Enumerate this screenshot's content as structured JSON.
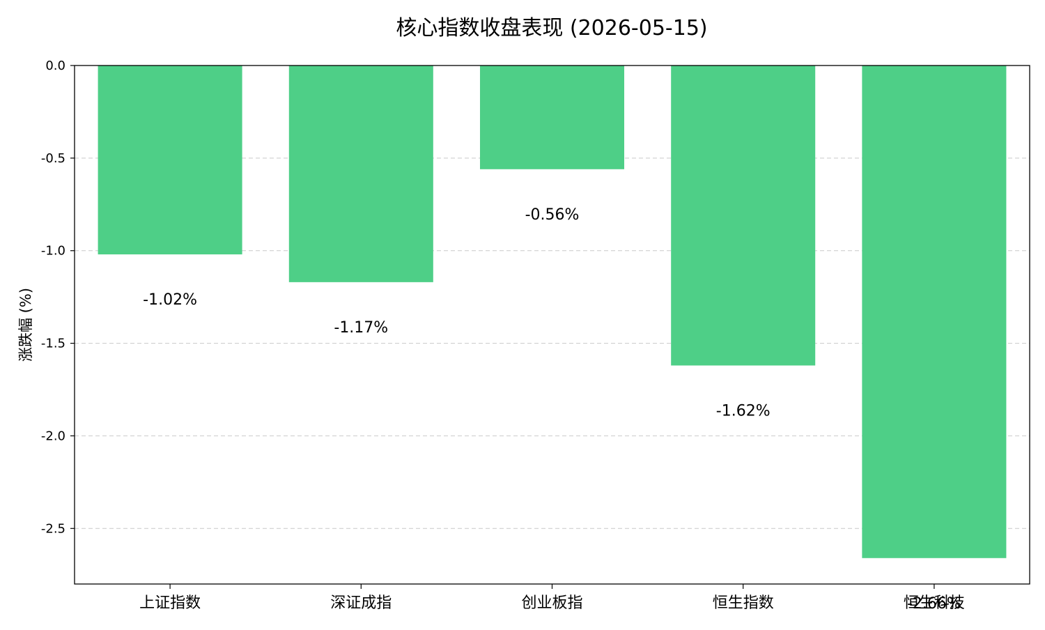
{
  "chart_data": {
    "type": "bar",
    "title": "核心指数收盘表现 (2026-05-15)",
    "ylabel": "涨跌幅 (%)",
    "xlabel": "",
    "categories": [
      "上证指数",
      "深证成指",
      "创业板指",
      "恒生指数",
      "恒生科技"
    ],
    "values": [
      -1.02,
      -1.17,
      -0.56,
      -1.62,
      -2.66
    ],
    "value_labels": [
      "-1.02%",
      "-1.17%",
      "-0.56%",
      "-1.62%",
      "-2.66%"
    ],
    "ylim": [
      -2.8,
      0.0
    ],
    "yticks": [
      0.0,
      -0.5,
      -1.0,
      -1.5,
      -2.0,
      -2.5
    ],
    "ytick_labels": [
      "0.0",
      "-0.5",
      "-1.0",
      "-1.5",
      "-2.0",
      "-2.5"
    ],
    "grid": "y-dashed",
    "bar_color": "#4ecf87"
  }
}
